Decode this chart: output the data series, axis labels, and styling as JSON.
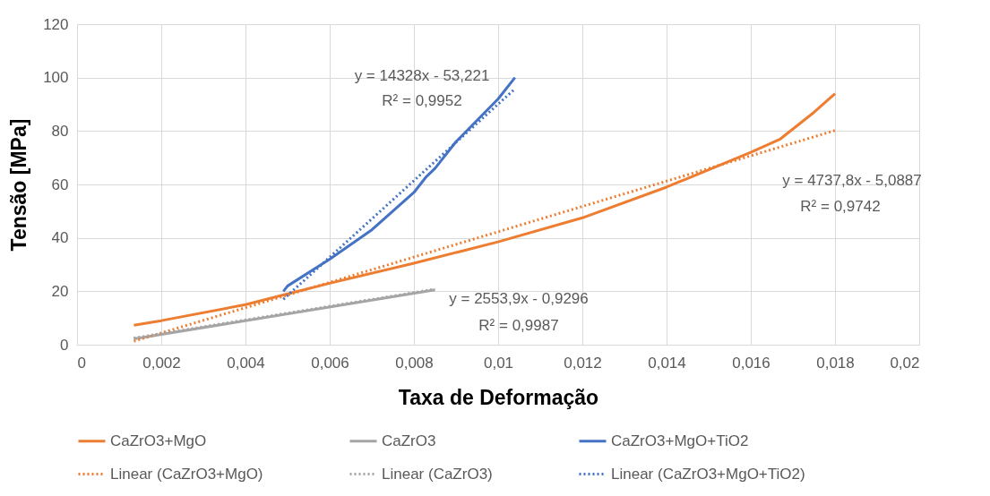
{
  "chart_data": {
    "type": "line",
    "xlabel": "Taxa de Deformação",
    "ylabel": "Tensão [MPa]",
    "xlim": [
      0,
      0.02
    ],
    "xticks": [
      {
        "value": 0,
        "label": "0"
      },
      {
        "value": 0.002,
        "label": "0,002"
      },
      {
        "value": 0.004,
        "label": "0,004"
      },
      {
        "value": 0.006,
        "label": "0,006"
      },
      {
        "value": 0.008,
        "label": "0,008"
      },
      {
        "value": 0.01,
        "label": "0,01"
      },
      {
        "value": 0.012,
        "label": "0,012"
      },
      {
        "value": 0.014,
        "label": "0,014"
      },
      {
        "value": 0.016,
        "label": "0,016"
      },
      {
        "value": 0.018,
        "label": "0,018"
      },
      {
        "value": 0.02,
        "label": "0,02"
      }
    ],
    "ylim": [
      0,
      120
    ],
    "yticks": [
      0,
      20,
      40,
      60,
      80,
      100,
      120
    ],
    "grid": true,
    "legend": "bottom",
    "marker": "none",
    "series": [
      {
        "name": "CaZrO3+MgO",
        "color": "#ed7d31",
        "line_style": "solid",
        "x": [
          0.00135,
          0.002,
          0.004,
          0.005,
          0.006,
          0.008,
          0.01,
          0.012,
          0.014,
          0.016,
          0.0167,
          0.0175,
          0.018
        ],
        "values": [
          7.3,
          9,
          15,
          19,
          23,
          30.5,
          38.5,
          47.5,
          59,
          72,
          77,
          87,
          94
        ]
      },
      {
        "name": "CaZrO3",
        "color": "#a5a5a5",
        "line_style": "solid",
        "x": [
          0.00135,
          0.0085
        ],
        "values": [
          2.2,
          20.5
        ]
      },
      {
        "name": "CaZrO3+MgO+TiO2",
        "color": "#4472c4",
        "line_style": "solid",
        "x": [
          0.0049,
          0.005,
          0.006,
          0.007,
          0.008,
          0.0083,
          0.0085,
          0.009,
          0.01,
          0.0104
        ],
        "values": [
          20,
          22,
          32,
          43,
          57,
          63,
          66,
          76,
          92,
          100
        ]
      },
      {
        "name": "Linear (CaZrO3+MgO)",
        "color": "#ed7d31",
        "line_style": "dotted",
        "x": [
          0.00135,
          0.018
        ],
        "values": [
          1.3,
          80.2
        ]
      },
      {
        "name": "Linear (CaZrO3)",
        "color": "#a5a5a5",
        "line_style": "dotted",
        "x": [
          0.00135,
          0.0085
        ],
        "values": [
          2.5,
          20.8
        ]
      },
      {
        "name": "Linear (CaZrO3+MgO+TiO2)",
        "color": "#4472c4",
        "line_style": "dotted",
        "x": [
          0.0049,
          0.0104
        ],
        "values": [
          17,
          95.8
        ]
      }
    ],
    "annotations": [
      "y = 14328x - 53,221",
      "R² = 0,9952",
      "y = 4737,8x - 5,0887",
      "R² = 0,9742",
      "y = 2553,9x - 0,9296",
      "R² = 0,9987"
    ]
  }
}
